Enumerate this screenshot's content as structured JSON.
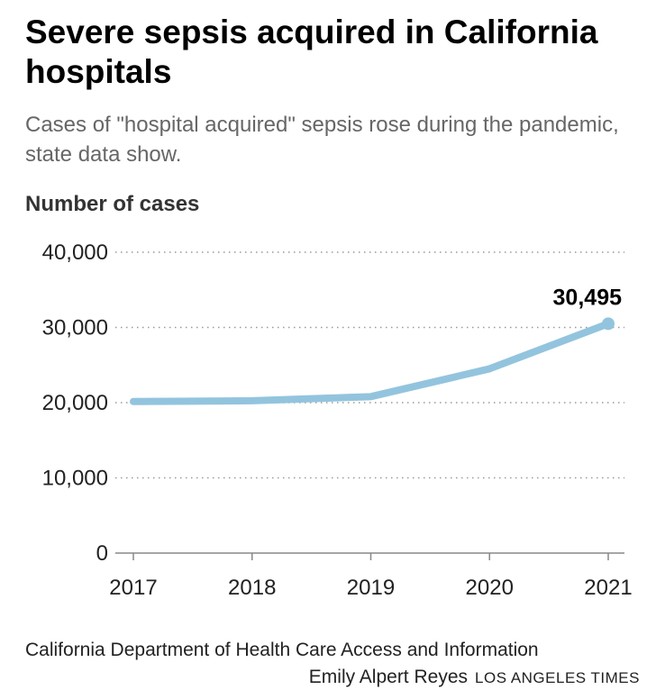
{
  "title": "Severe sepsis acquired in California hospitals",
  "subtitle": "Cases of \"hospital acquired\" sepsis rose during the pandemic, state data show.",
  "source": "California Department of Health Care Access and Information",
  "credit": "Emily Alpert Reyes",
  "brand": "LOS ANGELES TIMES",
  "chart_data": {
    "type": "line",
    "title": "Severe sepsis acquired in California hospitals",
    "ylabel": "Number of cases",
    "xlabel": "",
    "categories": [
      "2017",
      "2018",
      "2019",
      "2020",
      "2021"
    ],
    "values": [
      20150,
      20250,
      20800,
      24500,
      30495
    ],
    "ylim": [
      0,
      40000
    ],
    "yticks": [
      0,
      10000,
      20000,
      30000,
      40000
    ],
    "ytick_labels": [
      "0",
      "10,000",
      "20,000",
      "30,000",
      "40,000"
    ],
    "grid": true,
    "line_color": "#93c4de",
    "annotation": {
      "category": "2021",
      "label": "30,495"
    }
  }
}
